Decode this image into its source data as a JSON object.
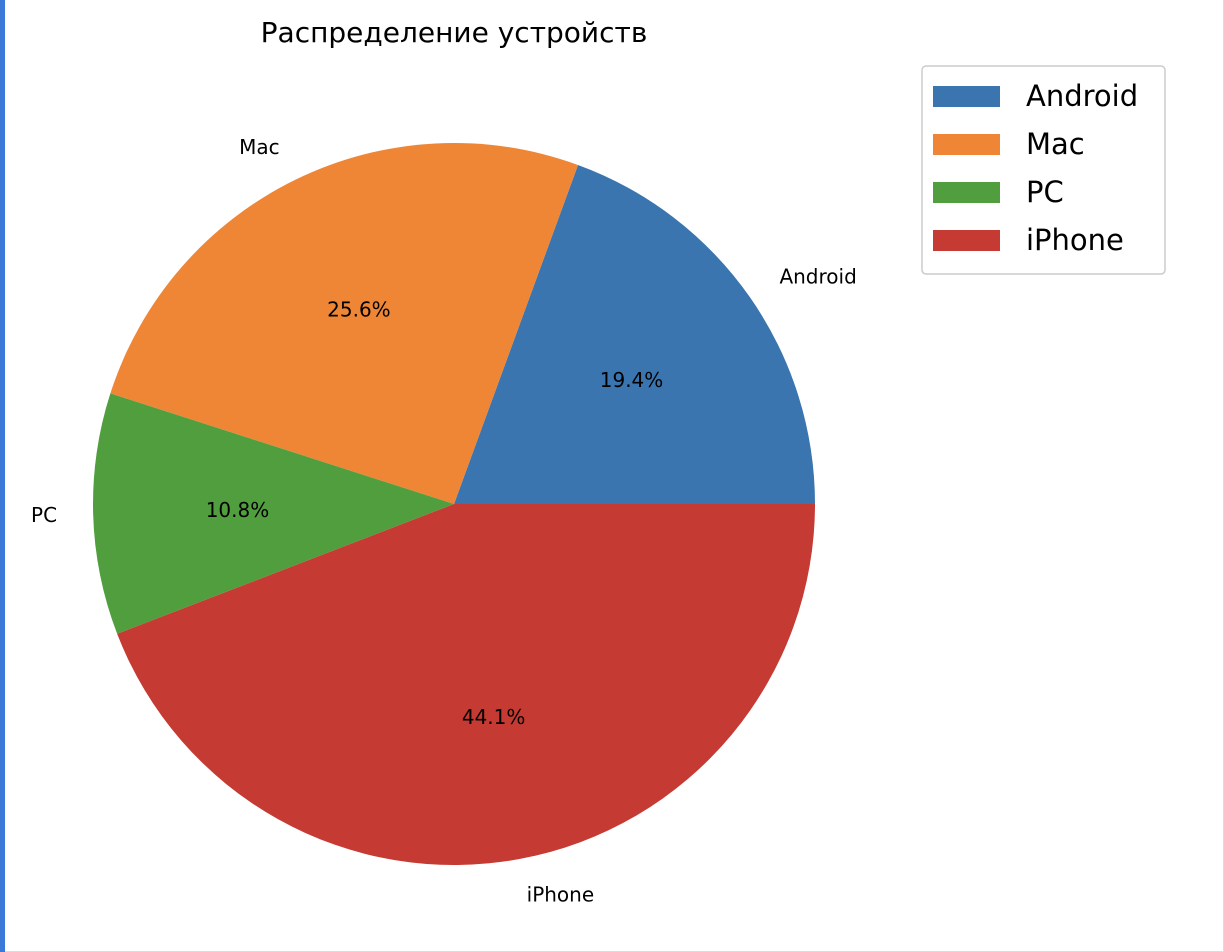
{
  "chart_data": {
    "type": "pie",
    "title": "Распределение устройств",
    "slices": [
      {
        "label": "Android",
        "value": 19.4,
        "pct_label": "19.4%",
        "color": "#3a75af"
      },
      {
        "label": "Mac",
        "value": 25.6,
        "pct_label": "25.6%",
        "color": "#ef8636"
      },
      {
        "label": "PC",
        "value": 10.8,
        "pct_label": "10.8%",
        "color": "#519e3e"
      },
      {
        "label": "iPhone",
        "value": 44.1,
        "pct_label": "44.1%",
        "color": "#c53a32"
      }
    ],
    "legend": {
      "entries": [
        "Android",
        "Mac",
        "PC",
        "iPhone"
      ],
      "placement": "top-right"
    }
  },
  "ui": {
    "accent_color": "#3b78d8"
  }
}
